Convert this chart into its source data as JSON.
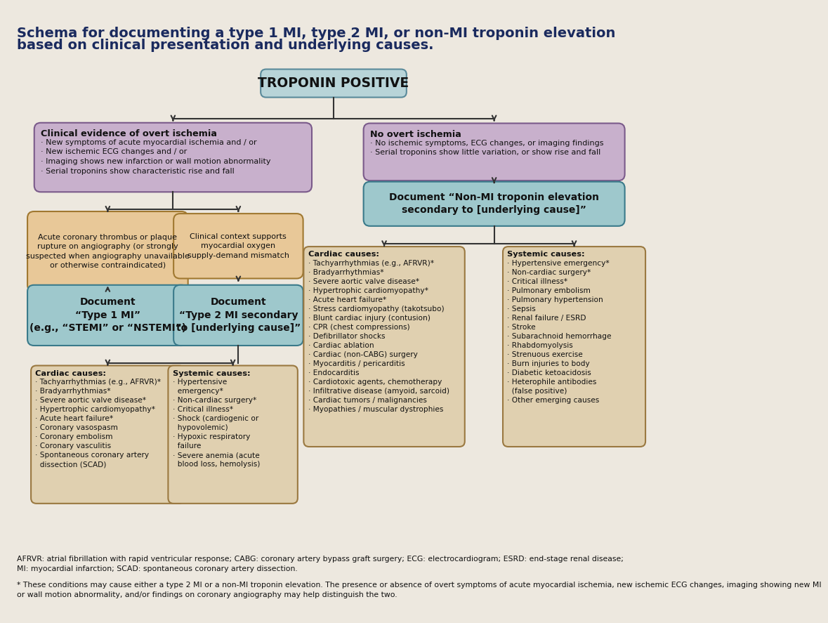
{
  "bg_color": "#ede8df",
  "title_color": "#1a2a5e",
  "title_fontsize": 14.0,
  "title_line1": "Schema for documenting a type 1 MI, type 2 MI, or non-MI troponin elevation",
  "title_line2": "based on clinical presentation and underlying causes.",
  "C_BLUE_BOX": "#b8d4d8",
  "C_PURPLE": "#c8b0cc",
  "C_TAN": "#e8c898",
  "C_TEAL": "#9ec8cc",
  "C_LIST": "#e0d0b0",
  "EC_BLUE": "#5a8a9a",
  "EC_PURPLE": "#7a5a8a",
  "EC_TAN": "#a07830",
  "EC_TEAL": "#3a7a8a",
  "EC_LIST": "#9a7840",
  "ARROW": "#333333",
  "TEXT": "#111111",
  "LW": 1.5,
  "footnote1": "AFRVR: atrial fibrillation with rapid ventricular response; CABG: coronary artery bypass graft surgery; ECG: electrocardiogram; ESRD: end-stage renal disease;\nMI: myocardial infarction; SCAD: spontaneous coronary artery dissection.",
  "footnote2": "* These conditions may cause either a type 2 MI or a non-MI troponin elevation. The presence or absence of overt symptoms of acute myocardial ischemia, new ischemic ECG changes, imaging showing new MI\nor wall motion abnormality, and/or findings on coronary angiography may help distinguish the two.",
  "fn_fontsize": 7.8,
  "troponin_text": "TROPONIN POSITIVE",
  "troponin_fontsize": 13.5,
  "left_branch_title": "Clinical evidence of overt ischemia",
  "left_branch_body": "· New symptoms of acute myocardial ischemia and / or\n· New ischemic ECG changes and / or\n· Imaging shows new infarction or wall motion abnormality\n· Serial troponins show characteristic rise and fall",
  "right_branch_title": "No overt ischemia",
  "right_branch_body": "· No ischemic symptoms, ECG changes, or imaging findings\n· Serial troponins show little variation, or show rise and fall",
  "acute_coronary_text": "Acute coronary thrombus or plaque\nrupture on angiography (or strongly\nsuspected when angiography unavailable\nor otherwise contraindicated)",
  "clinical_context_text": "Clinical context supports\nmyocardial oxygen\nsupply-demand mismatch",
  "type1_text": "Document\n“Type 1 MI”\n(e.g., “STEMI” or “NSTEMI”)",
  "type2_text": "Document\n“Type 2 MI secondary\nto [underlying cause]”",
  "nonmi_text": "Document “Non-MI troponin elevation\nsecondary to [underlying cause]”",
  "cc_type2_title": "Cardiac causes:",
  "cc_type2_items": "· Tachyarrhythmias (e.g., AFRVR)*\n· Bradyarrhythmias*\n· Severe aortic valve disease*\n· Hypertrophic cardiomyopathy*\n· Acute heart failure*\n· Coronary vasospasm\n· Coronary embolism\n· Coronary vasculitis\n· Spontaneous coronary artery\n  dissection (SCAD)",
  "sc_type2_title": "Systemic causes:",
  "sc_type2_items": "· Hypertensive\n  emergency*\n· Non-cardiac surgery*\n· Critical illness*\n· Shock (cardiogenic or\n  hypovolemic)\n· Hypoxic respiratory\n  failure\n· Severe anemia (acute\n  blood loss, hemolysis)",
  "cc_nonmi_title": "Cardiac causes:",
  "cc_nonmi_items": "· Tachyarrhythmias (e.g., AFRVR)*\n· Bradyarrhythmias*\n· Severe aortic valve disease*\n· Hypertrophic cardiomyopathy*\n· Acute heart failure*\n· Stress cardiomyopathy (takotsubo)\n· Blunt cardiac injury (contusion)\n· CPR (chest compressions)\n· Defibrillator shocks\n· Cardiac ablation\n· Cardiac (non-CABG) surgery\n· Myocarditis / pericarditis\n· Endocarditis\n· Cardiotoxic agents, chemotherapy\n· Infiltrative disease (amyoid, sarcoid)\n· Cardiac tumors / malignancies\n· Myopathies / muscular dystrophies",
  "sc_nonmi_title": "Systemic causes:",
  "sc_nonmi_items": "· Hypertensive emergency*\n· Non-cardiac surgery*\n· Critical illness*\n· Pulmonary embolism\n· Pulmonary hypertension\n· Sepsis\n· Renal failure / ESRD\n· Stroke\n· Subarachnoid hemorrhage\n· Rhabdomyolysis\n· Strenuous exercise\n· Burn injuries to body\n· Diabetic ketoacidosis\n· Heterophile antibodies\n  (false positive)\n· Other emerging causes"
}
